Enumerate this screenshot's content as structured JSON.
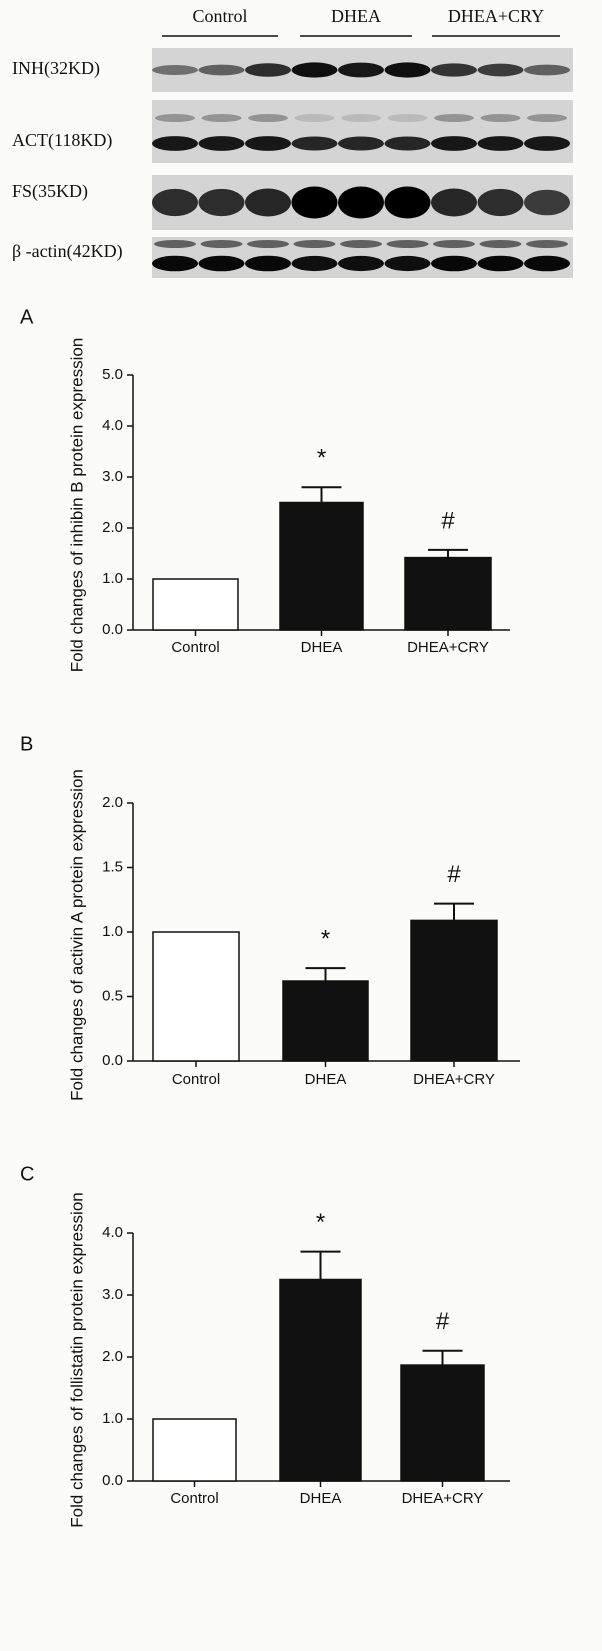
{
  "blot": {
    "groups": [
      "Control",
      "DHEA",
      "DHEA+CRY"
    ],
    "rows": [
      "INH(32KD)",
      "ACT(118KD)",
      "FS(35KD)",
      "β -actin(42KD)"
    ]
  },
  "chart_data": [
    {
      "type": "bar",
      "panel": "A",
      "ylabel": "Fold changes of inhibin B protein expression",
      "categories": [
        "Control",
        "DHEA",
        "DHEA+CRY"
      ],
      "values": [
        1.0,
        2.5,
        1.42
      ],
      "errors": [
        null,
        0.3,
        0.15
      ],
      "annotations": [
        null,
        "*",
        "#"
      ],
      "colors": [
        "#ffffff",
        "#111111",
        "#111111"
      ],
      "ylim": [
        0,
        5
      ],
      "yticks": [
        {
          "value": 0,
          "label": "0.0"
        },
        {
          "value": 1,
          "label": "1.0"
        },
        {
          "value": 2,
          "label": "2.0"
        },
        {
          "value": 3,
          "label": "3.0"
        },
        {
          "value": 4,
          "label": "4.0"
        },
        {
          "value": 5,
          "label": "5.0"
        }
      ]
    },
    {
      "type": "bar",
      "panel": "B",
      "ylabel": "Fold changes of activin A protein expression",
      "categories": [
        "Control",
        "DHEA",
        "DHEA+CRY"
      ],
      "values": [
        1.0,
        0.62,
        1.09
      ],
      "errors": [
        null,
        0.1,
        0.13
      ],
      "annotations": [
        null,
        "*",
        "#"
      ],
      "colors": [
        "#ffffff",
        "#111111",
        "#111111"
      ],
      "ylim": [
        0,
        2
      ],
      "yticks": [
        {
          "value": 0,
          "label": "0.0"
        },
        0.5,
        {
          "value": 1,
          "label": "1.0"
        },
        1.5,
        {
          "value": 2,
          "label": "2.0"
        }
      ]
    },
    {
      "type": "bar",
      "panel": "C",
      "ylabel": "Fold changes of follistatin protein expression",
      "categories": [
        "Control",
        "DHEA",
        "DHEA+CRY"
      ],
      "values": [
        1.0,
        3.25,
        1.87
      ],
      "errors": [
        null,
        0.45,
        0.23
      ],
      "annotations": [
        null,
        "*",
        "#"
      ],
      "colors": [
        "#ffffff",
        "#111111",
        "#111111"
      ],
      "ylim": [
        0,
        4
      ],
      "yticks": [
        {
          "value": 0,
          "label": "0.0"
        },
        {
          "value": 1,
          "label": "1.0"
        },
        {
          "value": 2,
          "label": "2.0"
        },
        {
          "value": 3,
          "label": "3.0"
        },
        {
          "value": 4,
          "label": "4.0"
        }
      ]
    }
  ]
}
